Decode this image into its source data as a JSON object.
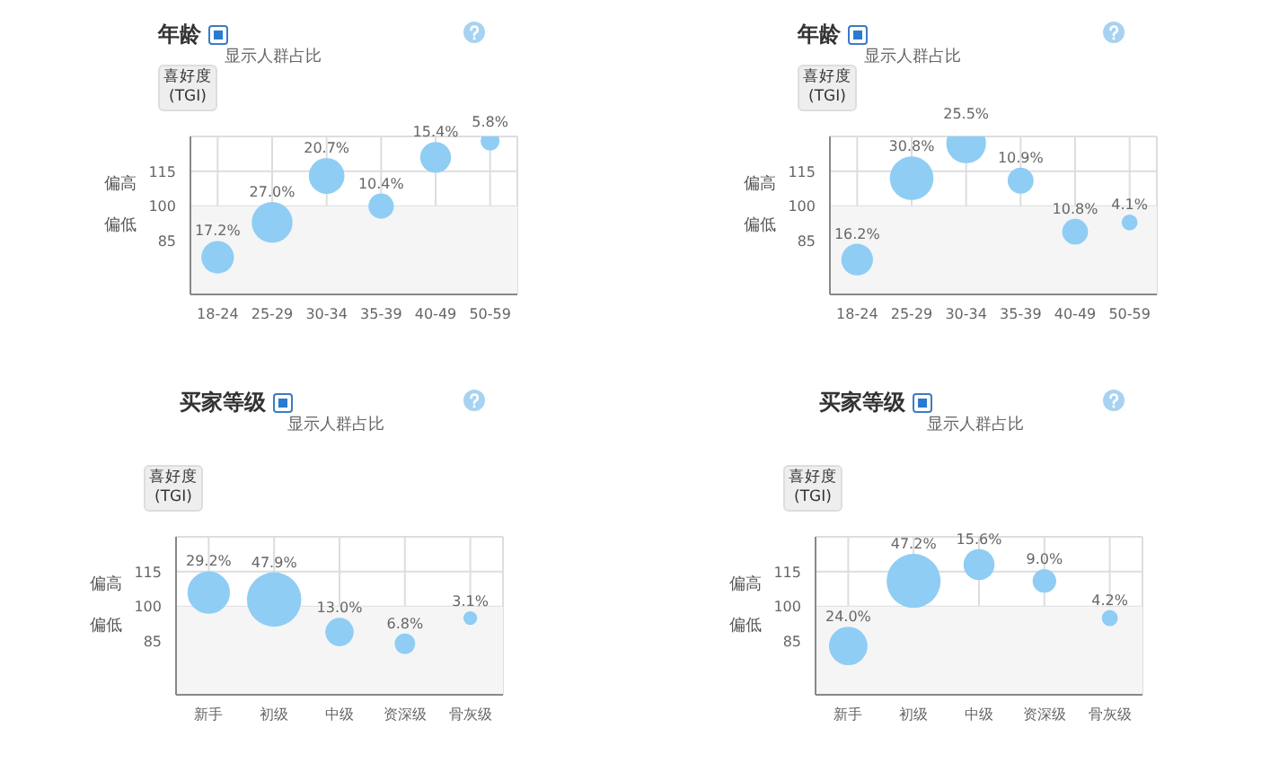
{
  "chart_data": [
    {
      "type": "bubble",
      "title": "年龄",
      "subtitle": "显示人群占比",
      "ylabel": "喜好度\n(TGI)",
      "categories": [
        "18-24",
        "25-29",
        "30-34",
        "35-39",
        "40-49",
        "50-59"
      ],
      "values": [
        78,
        93,
        113,
        100,
        121,
        128
      ],
      "sizes": [
        17.2,
        27.0,
        20.7,
        10.4,
        15.4,
        5.8
      ],
      "value_labels": [
        "17.2%",
        "27.0%",
        "20.7%",
        "10.4%",
        "15.4%",
        "5.8%"
      ],
      "color": "#8fcdf4",
      "ylim": [
        62,
        130
      ],
      "yticks": [
        85,
        100,
        115
      ],
      "grid": true,
      "bands": [
        {
          "axis": "y",
          "from": 62,
          "to": 100,
          "color": "#f5f5f5"
        }
      ],
      "annotations": [
        "偏高",
        "偏低"
      ]
    },
    {
      "type": "bubble",
      "title": "年龄",
      "subtitle": "显示人群占比",
      "ylabel": "喜好度\n(TGI)",
      "categories": [
        "18-24",
        "25-29",
        "30-34",
        "35-39",
        "40-49",
        "50-59"
      ],
      "values": [
        77,
        112,
        127,
        111,
        89,
        93
      ],
      "sizes": [
        16.2,
        30.8,
        25.5,
        10.9,
        10.8,
        4.1
      ],
      "value_labels": [
        "16.2%",
        "30.8%",
        "25.5%",
        "10.9%",
        "10.8%",
        "4.1%"
      ],
      "color": "#8fcdf4",
      "ylim": [
        62,
        130
      ],
      "yticks": [
        85,
        100,
        115
      ],
      "grid": true,
      "bands": [
        {
          "axis": "y",
          "from": 62,
          "to": 100,
          "color": "#f5f5f5"
        }
      ],
      "annotations": [
        "偏高",
        "偏低"
      ]
    },
    {
      "type": "bubble",
      "title": "买家等级",
      "subtitle": "显示人群占比",
      "ylabel": "喜好度\n(TGI)",
      "categories": [
        "新手",
        "初级",
        "中级",
        "资深级",
        "骨灰级"
      ],
      "values": [
        106,
        103,
        89,
        84,
        95
      ],
      "sizes": [
        29.2,
        47.9,
        13.0,
        6.8,
        3.1
      ],
      "value_labels": [
        "29.2%",
        "47.9%",
        "13.0%",
        "6.8%",
        "3.1%"
      ],
      "color": "#8fcdf4",
      "ylim": [
        62,
        130
      ],
      "yticks": [
        85,
        100,
        115
      ],
      "grid": true,
      "bands": [
        {
          "axis": "y",
          "from": 62,
          "to": 100,
          "color": "#f5f5f5"
        }
      ],
      "annotations": [
        "偏高",
        "偏低"
      ]
    },
    {
      "type": "bubble",
      "title": "买家等级",
      "subtitle": "显示人群占比",
      "ylabel": "喜好度\n(TGI)",
      "categories": [
        "新手",
        "初级",
        "中级",
        "资深级",
        "骨灰级"
      ],
      "values": [
        83,
        111,
        118,
        111,
        95
      ],
      "sizes": [
        24.0,
        47.2,
        15.6,
        9.0,
        4.2
      ],
      "value_labels": [
        "24.0%",
        "47.2%",
        "15.6%",
        "9.0%",
        "4.2%"
      ],
      "color": "#8fcdf4",
      "ylim": [
        62,
        130
      ],
      "yticks": [
        85,
        100,
        115
      ],
      "grid": true,
      "bands": [
        {
          "axis": "y",
          "from": 62,
          "to": 100,
          "color": "#f5f5f5"
        }
      ],
      "annotations": [
        "偏高",
        "偏低"
      ]
    }
  ]
}
